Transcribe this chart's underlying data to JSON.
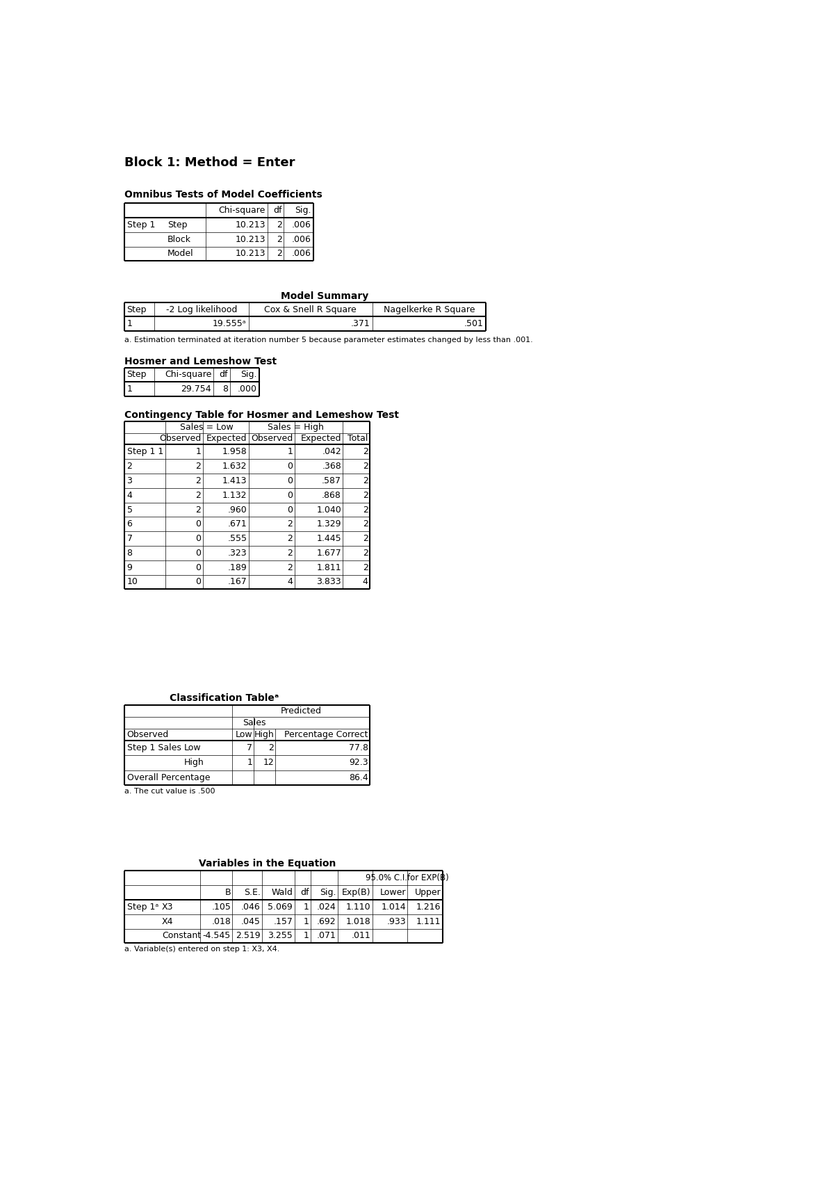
{
  "title": "Block 1: Method = Enter",
  "bg_color": "#ffffff",
  "text_color": "#000000",
  "omnibus_title": "Omnibus Tests of Model Coefficients",
  "model_summary_title": "Model Summary",
  "model_summary_note": "a. Estimation terminated at iteration number 5 because parameter estimates changed by less than .001.",
  "hosmer_title": "Hosmer and Lemeshow Test",
  "contingency_title": "Contingency Table for Hosmer and Lemeshow Test",
  "classification_title": "Classification Tableᵃ",
  "classification_note": "a. The cut value is .500",
  "variables_title": "Variables in the Equation",
  "variables_note": "a. Variable(s) entered on step 1: X3, X4.",
  "omnibus_data": [
    [
      "Step 1",
      "Step",
      "10.213",
      "2",
      ".006"
    ],
    [
      "",
      "Block",
      "10.213",
      "2",
      ".006"
    ],
    [
      "",
      "Model",
      "10.213",
      "2",
      ".006"
    ]
  ],
  "model_summary_data": [
    [
      "1",
      "19.555ᵃ",
      ".371",
      ".501"
    ]
  ],
  "hosmer_data": [
    [
      "1",
      "29.754",
      "8",
      ".000"
    ]
  ],
  "contingency_data": [
    [
      "Step 1 1",
      "1",
      "1.958",
      "1",
      ".042",
      "2"
    ],
    [
      "2",
      "2",
      "1.632",
      "0",
      ".368",
      "2"
    ],
    [
      "3",
      "2",
      "1.413",
      "0",
      ".587",
      "2"
    ],
    [
      "4",
      "2",
      "1.132",
      "0",
      ".868",
      "2"
    ],
    [
      "5",
      "2",
      ".960",
      "0",
      "1.040",
      "2"
    ],
    [
      "6",
      "0",
      ".671",
      "2",
      "1.329",
      "2"
    ],
    [
      "7",
      "0",
      ".555",
      "2",
      "1.445",
      "2"
    ],
    [
      "8",
      "0",
      ".323",
      "2",
      "1.677",
      "2"
    ],
    [
      "9",
      "0",
      ".189",
      "2",
      "1.811",
      "2"
    ],
    [
      "10",
      "0",
      ".167",
      "4",
      "3.833",
      "4"
    ]
  ],
  "classification_data": [
    [
      "Step 1 Sales",
      "Low",
      "7",
      "2",
      "77.8"
    ],
    [
      "",
      "High",
      "1",
      "12",
      "92.3"
    ],
    [
      "Overall Percentage",
      "",
      "",
      "",
      "86.4"
    ]
  ],
  "variables_data": [
    [
      "Step 1ᵃ",
      "X3",
      ".105",
      ".046",
      "5.069",
      "1",
      ".024",
      "1.110",
      "1.014",
      "1.216"
    ],
    [
      "",
      "X4",
      ".018",
      ".045",
      ".157",
      "1",
      ".692",
      "1.018",
      ".933",
      "1.111"
    ],
    [
      "",
      "Constant",
      "-4.545",
      "2.519",
      "3.255",
      "1",
      ".071",
      ".011",
      "",
      ""
    ]
  ]
}
